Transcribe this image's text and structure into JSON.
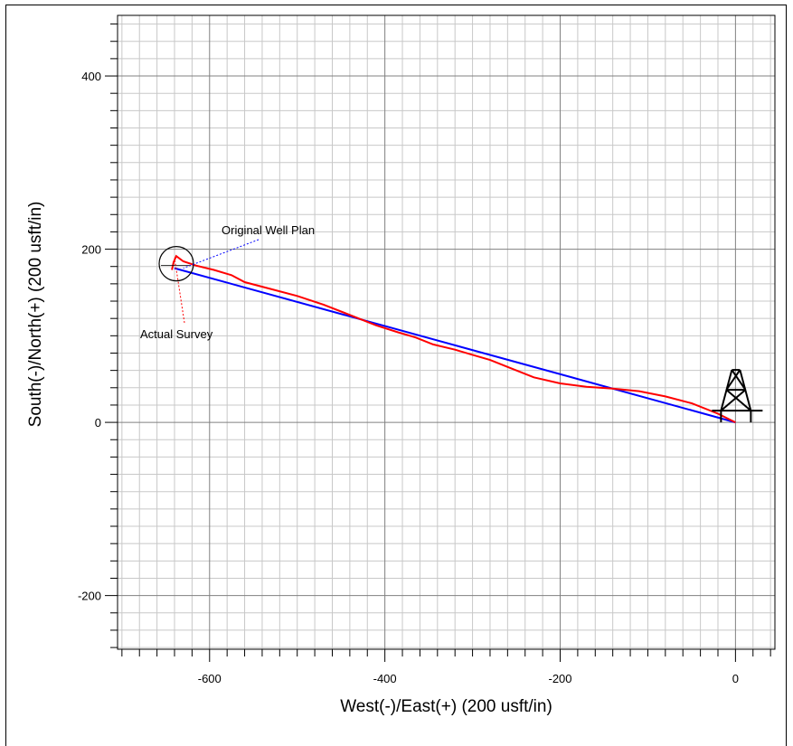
{
  "chart_data": {
    "type": "line",
    "xlabel": "West(-)/East(+) (200 usft/in)",
    "ylabel": "South(-)/North(+) (200 usft/in)",
    "xlim": [
      -705,
      45
    ],
    "ylim": [
      -262,
      470
    ],
    "x_ticks": [
      -600,
      -400,
      -200,
      0
    ],
    "y_ticks": [
      -200,
      0,
      200,
      400
    ],
    "grid": true,
    "series": [
      {
        "name": "Original Well Plan",
        "color": "#0000ff",
        "points": [
          [
            0,
            0
          ],
          [
            -640,
            178
          ]
        ]
      },
      {
        "name": "Actual Survey",
        "color": "#ff0000",
        "points": [
          [
            0,
            0
          ],
          [
            -20,
            10
          ],
          [
            -50,
            22
          ],
          [
            -80,
            30
          ],
          [
            -110,
            36
          ],
          [
            -140,
            39
          ],
          [
            -170,
            41
          ],
          [
            -200,
            45
          ],
          [
            -230,
            52
          ],
          [
            -260,
            64
          ],
          [
            -280,
            72
          ],
          [
            -300,
            78
          ],
          [
            -320,
            84
          ],
          [
            -345,
            90
          ],
          [
            -365,
            98
          ],
          [
            -385,
            104
          ],
          [
            -410,
            112
          ],
          [
            -440,
            124
          ],
          [
            -470,
            136
          ],
          [
            -500,
            146
          ],
          [
            -530,
            154
          ],
          [
            -560,
            162
          ],
          [
            -575,
            170
          ],
          [
            -595,
            176
          ],
          [
            -615,
            181
          ],
          [
            -630,
            186
          ],
          [
            -638,
            192
          ],
          [
            -641,
            185
          ],
          [
            -643,
            176
          ]
        ]
      }
    ],
    "annotations": [
      {
        "text": "Original Well Plan",
        "series": 0
      },
      {
        "text": "Actual Survey",
        "series": 1
      }
    ],
    "marker_circle": {
      "x": -640,
      "y": 178,
      "label": "target"
    },
    "rig_icon": {
      "x": 0,
      "y": 0,
      "name": "rig-icon"
    }
  }
}
